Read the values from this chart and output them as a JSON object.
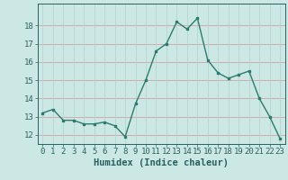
{
  "x": [
    0,
    1,
    2,
    3,
    4,
    5,
    6,
    7,
    8,
    9,
    10,
    11,
    12,
    13,
    14,
    15,
    16,
    17,
    18,
    19,
    20,
    21,
    22,
    23
  ],
  "y": [
    13.2,
    13.4,
    12.8,
    12.8,
    12.6,
    12.6,
    12.7,
    12.5,
    11.9,
    13.7,
    15.0,
    16.6,
    17.0,
    18.2,
    17.8,
    18.4,
    16.1,
    15.4,
    15.1,
    15.3,
    15.5,
    14.0,
    13.0,
    11.8
  ],
  "xlabel": "Humidex (Indice chaleur)",
  "ylim": [
    11.5,
    19.2
  ],
  "xlim": [
    -0.5,
    23.5
  ],
  "yticks": [
    12,
    13,
    14,
    15,
    16,
    17,
    18
  ],
  "xticks": [
    0,
    1,
    2,
    3,
    4,
    5,
    6,
    7,
    8,
    9,
    10,
    11,
    12,
    13,
    14,
    15,
    16,
    17,
    18,
    19,
    20,
    21,
    22,
    23
  ],
  "xtick_labels": [
    "0",
    "1",
    "2",
    "3",
    "4",
    "5",
    "6",
    "7",
    "8",
    "9",
    "10",
    "11",
    "12",
    "13",
    "14",
    "15",
    "16",
    "17",
    "18",
    "19",
    "20",
    "21",
    "22",
    "23"
  ],
  "line_color": "#2d7a6e",
  "bg_color": "#cce8e4",
  "grid_color_h": "#d4a0a0",
  "grid_color_v": "#b8d4d0",
  "tick_color": "#2a6060",
  "xlabel_color": "#2a6060",
  "xlabel_fontsize": 7.5,
  "tick_fontsize": 6.5
}
